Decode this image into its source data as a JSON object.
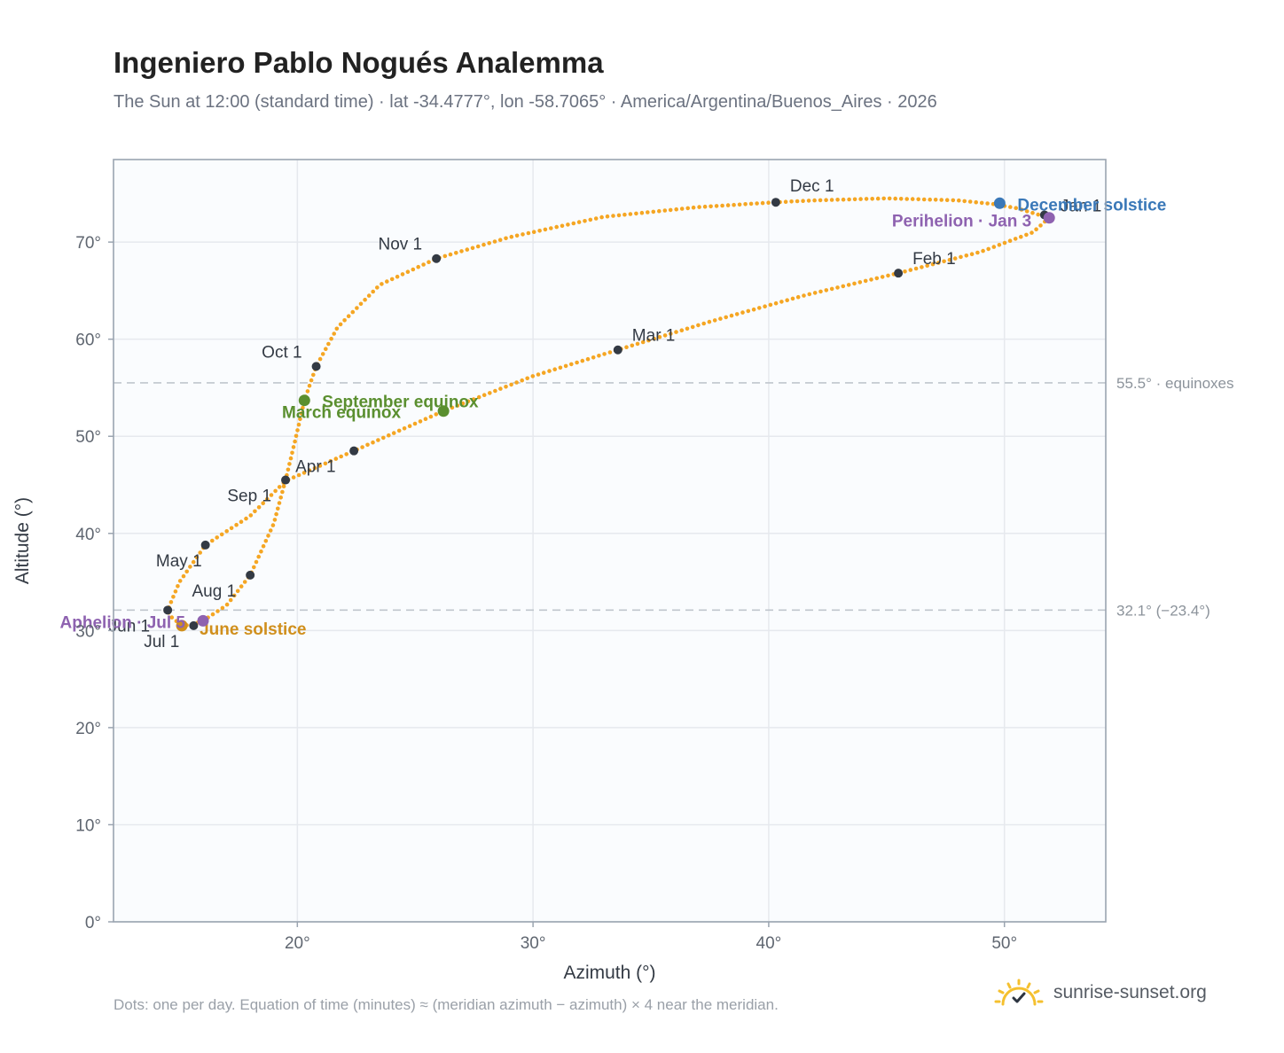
{
  "title": "Ingeniero Pablo Nogués Analemma",
  "subtitle": "The Sun at 12:00 (standard time) · lat -34.4777°, lon -58.7065° · America/Argentina/Buenos_Aires · 2026",
  "footnote": "Dots: one per day. Equation of time (minutes) ≈ (meridian azimuth − azimuth) × 4 near the meridian.",
  "brand": "sunrise-sunset.org",
  "colors": {
    "curve": "#f5a623",
    "month": "#333a44",
    "equinox": "#5a8f2f",
    "solstice_june": "#d08f1c",
    "solstice_december": "#3a78b8",
    "apsis": "#8e62b0",
    "plot_bg": "#fafcfe",
    "grid": "#e6e9ee",
    "ref_line": "#c0c6cd"
  },
  "chart_data": {
    "type": "scatter",
    "xlabel": "Azimuth (°)",
    "ylabel": "Altitude (°)",
    "xlim": [
      12.2,
      54.3
    ],
    "ylim": [
      0,
      78.5
    ],
    "xticks": [
      20,
      30,
      40,
      50
    ],
    "xtick_labels": [
      "20°",
      "30°",
      "40°",
      "50°"
    ],
    "yticks": [
      0,
      10,
      20,
      30,
      40,
      50,
      60,
      70
    ],
    "ytick_labels": [
      "0°",
      "10°",
      "20°",
      "30°",
      "40°",
      "50°",
      "60°",
      "70°"
    ],
    "grid": true,
    "reference_lines": [
      {
        "y": 55.5,
        "label": "55.5° · equinoxes"
      },
      {
        "y": 32.1,
        "label": "32.1° (−23.4°)"
      }
    ],
    "curve_keypoints": [
      [
        51.9,
        72.5
      ],
      [
        50.5,
        73.5
      ],
      [
        49.6,
        73.9
      ],
      [
        48.0,
        74.3
      ],
      [
        45.0,
        74.5
      ],
      [
        42.0,
        74.3
      ],
      [
        40.3,
        74.1
      ],
      [
        37.0,
        73.6
      ],
      [
        33.0,
        72.6
      ],
      [
        29.0,
        70.5
      ],
      [
        25.9,
        68.3
      ],
      [
        23.5,
        65.6
      ],
      [
        21.7,
        61.2
      ],
      [
        20.8,
        57.2
      ],
      [
        20.3,
        53.7
      ],
      [
        19.9,
        49.5
      ],
      [
        19.5,
        45.5
      ],
      [
        19.0,
        41.0
      ],
      [
        18.0,
        35.7
      ],
      [
        17.0,
        32.6
      ],
      [
        16.0,
        31.0
      ],
      [
        15.4,
        30.5
      ],
      [
        15.0,
        30.7
      ],
      [
        14.6,
        31.5
      ],
      [
        14.5,
        32.1
      ],
      [
        15.0,
        35.0
      ],
      [
        16.1,
        38.8
      ],
      [
        18.0,
        41.8
      ],
      [
        19.5,
        45.4
      ],
      [
        22.4,
        48.5
      ],
      [
        26.2,
        52.6
      ],
      [
        30.0,
        56.2
      ],
      [
        33.6,
        58.9
      ],
      [
        37.5,
        61.8
      ],
      [
        41.5,
        64.5
      ],
      [
        45.5,
        66.8
      ],
      [
        49.0,
        69.0
      ],
      [
        51.2,
        71.0
      ],
      [
        51.9,
        72.5
      ]
    ],
    "months": [
      {
        "label": "Jan 1",
        "x": 51.7,
        "y": 72.8
      },
      {
        "label": "Feb 1",
        "x": 45.5,
        "y": 66.8
      },
      {
        "label": "Mar 1",
        "x": 33.6,
        "y": 58.9
      },
      {
        "label": "Apr 1",
        "x": 22.4,
        "y": 48.5
      },
      {
        "label": "May 1",
        "x": 16.1,
        "y": 38.8
      },
      {
        "label": "Jun 1",
        "x": 14.5,
        "y": 32.1
      },
      {
        "label": "Jul 1",
        "x": 15.6,
        "y": 30.5
      },
      {
        "label": "Aug 1",
        "x": 18.0,
        "y": 35.7
      },
      {
        "label": "Sep 1",
        "x": 19.5,
        "y": 45.5
      },
      {
        "label": "Oct 1",
        "x": 20.8,
        "y": 57.2
      },
      {
        "label": "Nov 1",
        "x": 25.9,
        "y": 68.3
      },
      {
        "label": "Dec 1",
        "x": 40.3,
        "y": 74.1
      }
    ],
    "events": [
      {
        "label": "March equinox",
        "x": 26.2,
        "y": 52.6,
        "kind": "equinox"
      },
      {
        "label": "September equinox",
        "x": 20.3,
        "y": 53.7,
        "kind": "equinox"
      },
      {
        "label": "June solstice",
        "x": 15.1,
        "y": 30.5,
        "kind": "solstice_june"
      },
      {
        "label": "December solstice",
        "x": 49.8,
        "y": 74.0,
        "kind": "solstice_december"
      },
      {
        "label": "Perihelion · Jan 3",
        "x": 51.9,
        "y": 72.5,
        "kind": "apsis"
      },
      {
        "label": "Aphelion · Jul 5",
        "x": 16.0,
        "y": 31.0,
        "kind": "apsis"
      }
    ]
  }
}
